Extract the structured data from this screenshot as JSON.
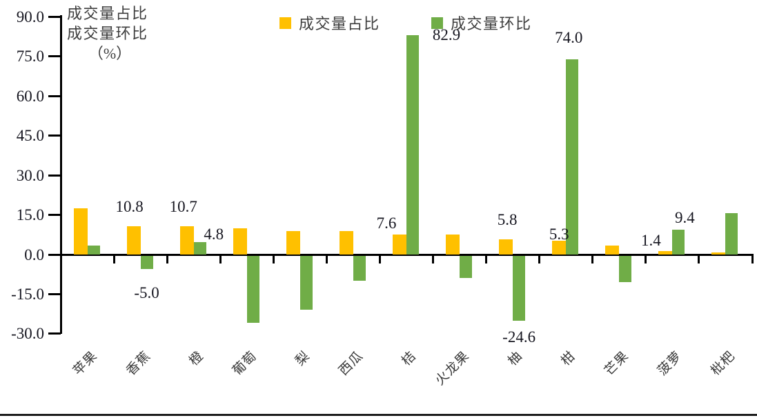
{
  "chart_data": {
    "type": "bar",
    "title": "",
    "axis_title_lines": [
      "成交量占比",
      "成交量环比",
      "（%）"
    ],
    "categories": [
      "苹果",
      "香蕉",
      "橙",
      "葡萄",
      "梨",
      "西瓜",
      "桔",
      "火龙果",
      "柚",
      "柑",
      "芒果",
      "菠萝",
      "枇杷"
    ],
    "series": [
      {
        "name": "成交量占比",
        "color": "#FFC000",
        "values": [
          17.5,
          10.8,
          10.7,
          10.0,
          9.0,
          9.0,
          7.6,
          7.5,
          5.8,
          5.3,
          3.5,
          1.4,
          0.9
        ]
      },
      {
        "name": "成交量环比",
        "color": "#70AD47",
        "values": [
          3.5,
          -5.0,
          4.8,
          -25.5,
          -20.5,
          -9.5,
          82.9,
          -8.4,
          -24.6,
          74.0,
          -10.0,
          9.4,
          15.7
        ]
      }
    ],
    "data_labels": [
      {
        "series": 0,
        "index": 1,
        "text": "10.8",
        "dx": -6,
        "gap": 17
      },
      {
        "series": 1,
        "index": 1,
        "text": "-5.0",
        "dx": 0,
        "gap": 25
      },
      {
        "series": 0,
        "index": 2,
        "text": "10.7",
        "dx": -5,
        "gap": 17
      },
      {
        "series": 1,
        "index": 2,
        "text": "4.8",
        "dx": 20,
        "gap": 0
      },
      {
        "series": 0,
        "index": 6,
        "text": "7.6",
        "dx": -19,
        "gap": 5
      },
      {
        "series": 1,
        "index": 6,
        "text": "82.9",
        "dx": 49,
        "gap": -11
      },
      {
        "series": 0,
        "index": 8,
        "text": "5.8",
        "dx": 2,
        "gap": 17
      },
      {
        "series": 1,
        "index": 8,
        "text": "-24.6",
        "dx": 0,
        "gap": 14
      },
      {
        "series": 0,
        "index": 9,
        "text": "5.3",
        "dx": 0,
        "gap": -2
      },
      {
        "series": 1,
        "index": 9,
        "text": "74.0",
        "dx": -5,
        "gap": 20
      },
      {
        "series": 0,
        "index": 11,
        "text": "1.4",
        "dx": -21,
        "gap": 4
      },
      {
        "series": 1,
        "index": 11,
        "text": "9.4",
        "dx": 9,
        "gap": 6
      }
    ],
    "y_ticks": [
      90,
      75,
      60,
      45,
      30,
      15,
      0,
      -15,
      -30
    ],
    "y_tick_labels": [
      "90.0",
      "75.0",
      "60.0",
      "45.0",
      "30.0",
      "15.0",
      "0.0",
      "-15.0",
      "-30.0"
    ],
    "ylim": [
      -30,
      90
    ],
    "xlabel": "",
    "ylabel": "成交量占比 成交量环比 （%）",
    "legend_position": "top",
    "grid": false
  },
  "colors": {
    "bar_yellow": "#FFC000",
    "bar_green": "#70AD47",
    "axis_black": "#000000",
    "title_text": "#3d3d3d",
    "number_text": "#15151f"
  }
}
